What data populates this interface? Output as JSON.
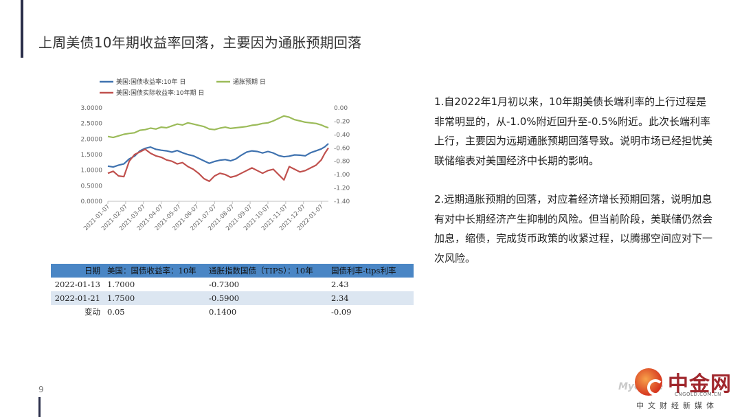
{
  "slide": {
    "title": "上周美债10年期收益率回落，主要因为通胀预期回落",
    "page_number": "9"
  },
  "text": {
    "bullet_1": "1.自2022年1月初以来，10年期美债长端利率的上行过程是非常明显的，从-1.0%附近回升至-0.5%附近。此次长端利率上行，主要因为远期通胀预期回落导致。说明市场已经担忧美联储缩表对美国经济中长期的影响。",
    "bullet_2": "2.远期通胀预期的回落，对应着经济增长预期回落，说明加息有对中长期经济产生抑制的风险。但当前阶段，美联储仍然会加息，缩债，完成货币政策的收紧过程，以腾挪空间应对下一次风险。"
  },
  "table": {
    "headers": [
      "日期",
      "美国：国债收益率：10年",
      "通胀指数国债（TIPS）：10年",
      "国债利率-tips利率"
    ],
    "rows": [
      [
        "2022-01-13",
        "1.7000",
        "-0.7300",
        "2.43"
      ],
      [
        "2022-01-21",
        "1.7500",
        "-0.5900",
        "2.34"
      ],
      [
        "变动",
        "0.05",
        "0.1400",
        "-0.09"
      ]
    ]
  },
  "logo": {
    "name": "中金网",
    "url": "CNGOLD.COM.CN",
    "tagline": "中文财经新媒体",
    "watermark": "Mycome"
  },
  "chart_data": {
    "type": "line",
    "legend": [
      "美国:国债收益率:10年 日",
      "通胀预期 日",
      "美国:国债实际收益率:10年期 日"
    ],
    "legend_placement": "top",
    "x_ticks": [
      "2021-01-07",
      "2021-02-07",
      "2021-03-07",
      "2021-04-07",
      "2021-05-07",
      "2021-06-07",
      "2021-07-07",
      "2021-08-07",
      "2021-09-07",
      "2021-10-07",
      "2021-11-07",
      "2021-12-07",
      "2022-01-07"
    ],
    "y_left": {
      "ticks": [
        "3.0000",
        "2.5000",
        "2.0000",
        "1.5000",
        "1.0000",
        "0.5000",
        "0.0000"
      ],
      "range": [
        0,
        3
      ]
    },
    "y_right": {
      "ticks": [
        "0.00",
        "-0.20",
        "-0.40",
        "-0.60",
        "-0.80",
        "-1.00",
        "-1.20",
        "-1.40"
      ],
      "range": [
        -1.4,
        0
      ]
    },
    "grid": false,
    "colors": {
      "nominal": "#3f72af",
      "breakeven": "#9bbb59",
      "real": "#c0504d"
    },
    "series": [
      {
        "name": "美国:国债收益率:10年 日",
        "axis": "left",
        "x": [
          0,
          0.3,
          0.6,
          0.9,
          1.2,
          1.5,
          1.8,
          2.1,
          2.4,
          2.7,
          3.0,
          3.3,
          3.6,
          3.9,
          4.2,
          4.5,
          4.8,
          5.1,
          5.4,
          5.7,
          6.0,
          6.3,
          6.6,
          6.9,
          7.2,
          7.5,
          7.8,
          8.1,
          8.4,
          8.7,
          9.0,
          9.3,
          9.6,
          9.9,
          10.2,
          10.5,
          10.8,
          11.1,
          11.4,
          11.7,
          12.0,
          12.2,
          12.4
        ],
        "y": [
          1.13,
          1.1,
          1.16,
          1.2,
          1.36,
          1.45,
          1.62,
          1.7,
          1.74,
          1.67,
          1.64,
          1.62,
          1.58,
          1.63,
          1.56,
          1.5,
          1.46,
          1.38,
          1.3,
          1.22,
          1.28,
          1.32,
          1.34,
          1.3,
          1.36,
          1.48,
          1.58,
          1.62,
          1.6,
          1.55,
          1.6,
          1.55,
          1.47,
          1.43,
          1.45,
          1.49,
          1.48,
          1.46,
          1.56,
          1.62,
          1.68,
          1.75,
          1.85
        ]
      },
      {
        "name": "通胀预期 日",
        "axis": "left",
        "x": [
          0,
          0.3,
          0.6,
          0.9,
          1.2,
          1.5,
          1.8,
          2.1,
          2.4,
          2.7,
          3.0,
          3.3,
          3.6,
          3.9,
          4.2,
          4.5,
          4.8,
          5.1,
          5.4,
          5.7,
          6.0,
          6.3,
          6.6,
          6.9,
          7.2,
          7.5,
          7.8,
          8.1,
          8.4,
          8.7,
          9.0,
          9.3,
          9.6,
          9.9,
          10.2,
          10.5,
          10.8,
          11.1,
          11.4,
          11.7,
          12.0,
          12.2,
          12.4
        ],
        "y": [
          2.08,
          2.05,
          2.1,
          2.15,
          2.18,
          2.2,
          2.28,
          2.3,
          2.35,
          2.32,
          2.38,
          2.36,
          2.42,
          2.48,
          2.45,
          2.52,
          2.48,
          2.44,
          2.4,
          2.32,
          2.3,
          2.35,
          2.38,
          2.34,
          2.36,
          2.38,
          2.4,
          2.44,
          2.46,
          2.5,
          2.52,
          2.58,
          2.66,
          2.74,
          2.7,
          2.62,
          2.58,
          2.54,
          2.52,
          2.5,
          2.45,
          2.4,
          2.36
        ]
      },
      {
        "name": "美国:国债实际收益率:10年期 日",
        "axis": "right",
        "x": [
          0,
          0.3,
          0.6,
          0.9,
          1.2,
          1.5,
          1.8,
          2.1,
          2.4,
          2.7,
          3.0,
          3.3,
          3.6,
          3.9,
          4.2,
          4.5,
          4.8,
          5.1,
          5.4,
          5.7,
          6.0,
          6.3,
          6.6,
          6.9,
          7.2,
          7.5,
          7.8,
          8.1,
          8.4,
          8.7,
          9.0,
          9.3,
          9.6,
          9.9,
          10.2,
          10.5,
          10.8,
          11.1,
          11.4,
          11.7,
          12.0,
          12.2,
          12.4
        ],
        "y": [
          -0.98,
          -0.95,
          -1.02,
          -1.03,
          -0.8,
          -0.7,
          -0.66,
          -0.62,
          -0.68,
          -0.72,
          -0.74,
          -0.78,
          -0.8,
          -0.84,
          -0.82,
          -0.88,
          -0.92,
          -0.98,
          -1.06,
          -1.1,
          -1.02,
          -0.98,
          -1.0,
          -1.04,
          -1.02,
          -0.98,
          -0.94,
          -0.9,
          -0.94,
          -0.98,
          -0.94,
          -0.92,
          -1.0,
          -1.08,
          -0.88,
          -0.92,
          -0.96,
          -0.94,
          -0.9,
          -0.86,
          -0.78,
          -0.68,
          -0.6
        ]
      }
    ]
  }
}
